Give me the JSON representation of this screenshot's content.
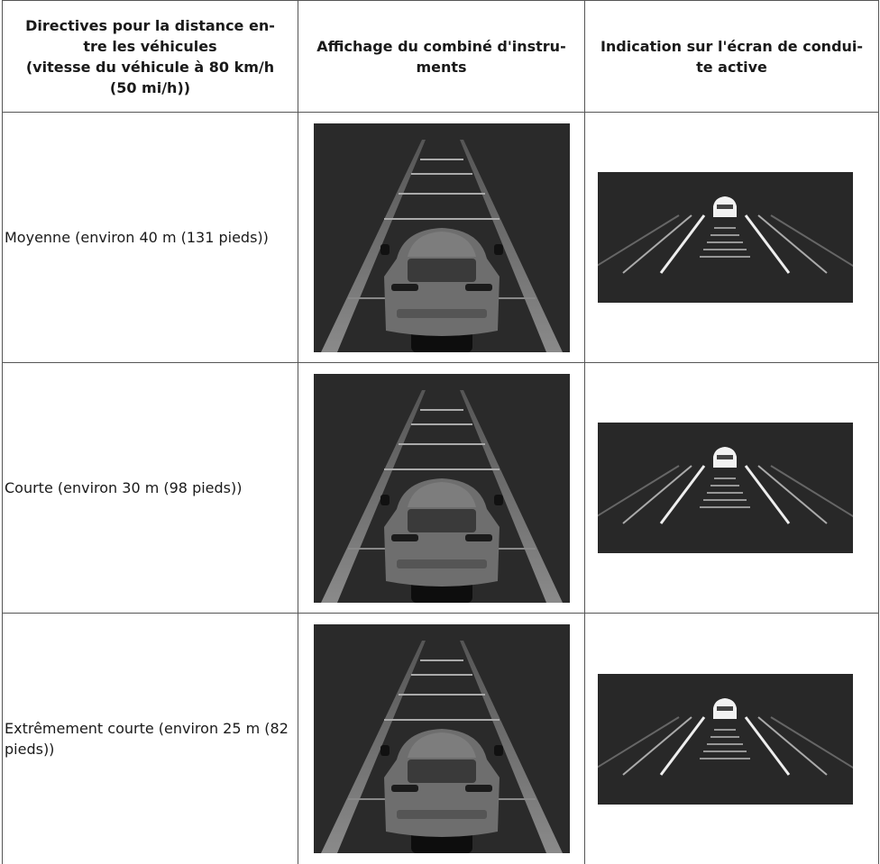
{
  "header": [
    [
      "Directives pour la distance en-",
      "tre les véhicules",
      "(vitesse du véhicule à 80 km/h",
      "(50 mi/h))"
    ],
    [
      "Affichage du combiné d'instru-",
      "ments"
    ],
    [
      "Indication sur l'écran de condui-",
      "te active"
    ]
  ],
  "rows": [
    {
      "distance": "Moyenne (environ 40 m (131 pieds))"
    },
    {
      "distance": "Courte (environ 30 m (98 pieds))"
    },
    {
      "distance": "Extrêmement courte (environ 25 m (82 pieds))"
    }
  ]
}
